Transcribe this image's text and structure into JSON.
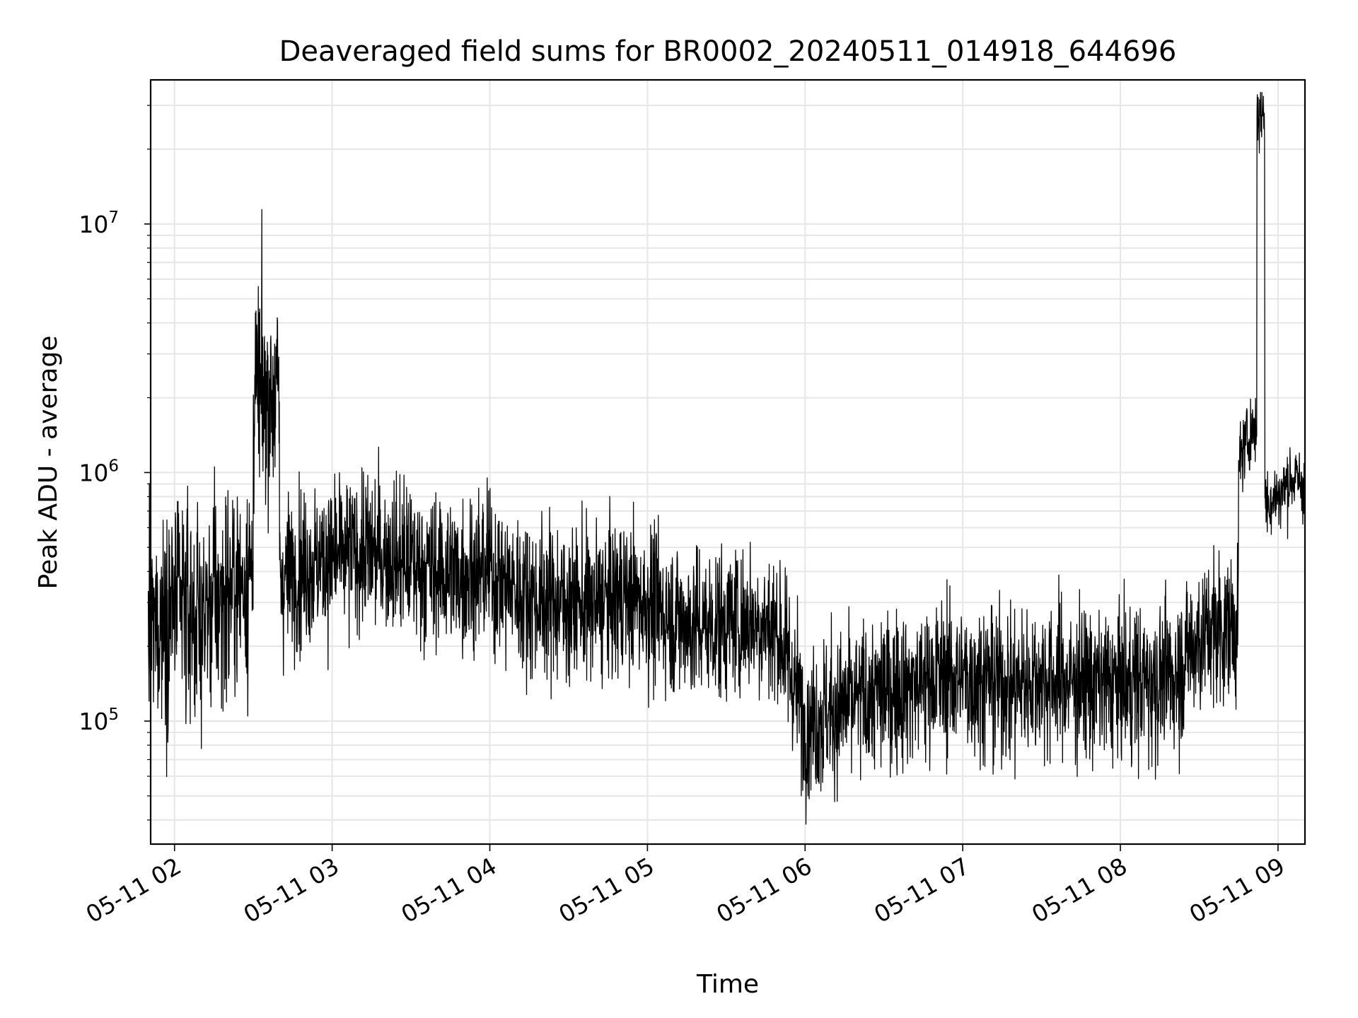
{
  "chart_data": {
    "type": "line",
    "title": "Deaveraged field sums for BR0002_20240511_014918_644696",
    "xlabel": "Time",
    "ylabel": "Peak ADU - average",
    "yscale": "log",
    "ylim": [
      32000,
      38000000
    ],
    "xlim": [
      "05-11 01:50:55",
      "05-11 09:10:15"
    ],
    "grid": true,
    "x_ticks": [
      "05-11 02",
      "05-11 03",
      "05-11 04",
      "05-11 05",
      "05-11 06",
      "05-11 07",
      "05-11 08",
      "05-11 09"
    ],
    "y_ticks": [
      {
        "base": "10",
        "exp": "5",
        "value": 100000
      },
      {
        "base": "10",
        "exp": "6",
        "value": 1000000
      },
      {
        "base": "10",
        "exp": "7",
        "value": 10000000
      }
    ],
    "line_color": "#000000",
    "grid_color": "#e6e6e6",
    "series": [
      {
        "x": [
          "05-11 01:50",
          "05-11 02:00",
          "05-11 02:10",
          "05-11 02:20",
          "05-11 02:29",
          "05-11 02:30",
          "05-11 02:40",
          "05-11 02:50",
          "05-11 03:00",
          "05-11 03:10",
          "05-11 03:20",
          "05-11 03:30",
          "05-11 03:40",
          "05-11 03:50",
          "05-11 04:00",
          "05-11 04:10",
          "05-11 04:20",
          "05-11 04:30",
          "05-11 04:40",
          "05-11 04:50",
          "05-11 05:00",
          "05-11 05:10",
          "05-11 05:20",
          "05-11 05:30",
          "05-11 05:40",
          "05-11 05:50",
          "05-11 06:00",
          "05-11 06:10",
          "05-11 06:20",
          "05-11 06:30",
          "05-11 06:40",
          "05-11 06:50",
          "05-11 07:00",
          "05-11 07:10",
          "05-11 07:20",
          "05-11 07:30",
          "05-11 07:40",
          "05-11 07:50",
          "05-11 08:00",
          "05-11 08:10",
          "05-11 08:20",
          "05-11 08:30",
          "05-11 08:40",
          "05-11 08:45",
          "05-11 08:50",
          "05-11 08:52",
          "05-11 08:55",
          "05-11 09:00",
          "05-11 09:05",
          "05-11 09:10"
        ],
        "y": [
          220000,
          300000,
          260000,
          330000,
          400000,
          2050000,
          380000,
          420000,
          450000,
          480000,
          470000,
          430000,
          400000,
          390000,
          410000,
          330000,
          310000,
          300000,
          290000,
          320000,
          300000,
          260000,
          240000,
          250000,
          260000,
          230000,
          100000,
          110000,
          120000,
          130000,
          140000,
          150000,
          150000,
          145000,
          140000,
          150000,
          145000,
          140000,
          140000,
          145000,
          150000,
          220000,
          240000,
          1100000,
          1500000,
          28000000,
          750000,
          800000,
          950000,
          900000
        ]
      }
    ]
  }
}
